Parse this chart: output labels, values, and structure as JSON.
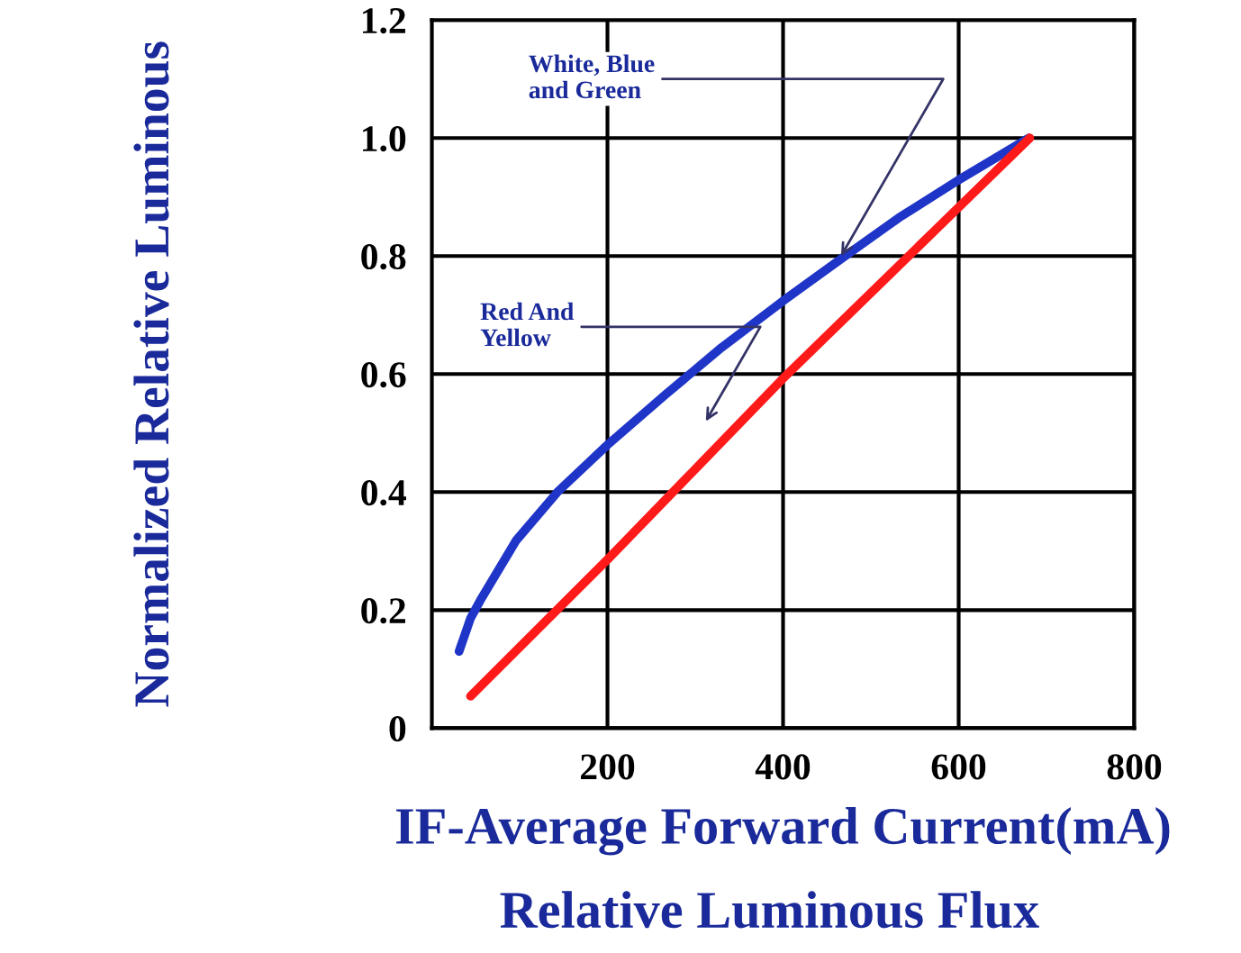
{
  "chart_data": {
    "type": "line",
    "ylabel": "Normalized Relative Luminous",
    "xlabel": "IF-Average Forward Current(mA)",
    "series": [
      {
        "color": "#1f35c8",
        "x": [
          31,
          44,
          55,
          96,
          143,
          200,
          266,
          330,
          400,
          466,
          532,
          600,
          680
        ],
        "values": [
          0.13,
          0.186,
          0.216,
          0.318,
          0.4,
          0.48,
          0.565,
          0.645,
          0.724,
          0.795,
          0.865,
          0.929,
          1.0
        ]
      },
      {
        "color": "#ff1a1a",
        "x": [
          44,
          201,
          403,
          681
        ],
        "values": [
          0.054,
          0.287,
          0.597,
          1.0
        ]
      }
    ],
    "xlim": [
      0,
      800
    ],
    "xticks": [
      200,
      400,
      600,
      800
    ],
    "ylim": [
      0,
      1.2
    ],
    "yticks": [
      0,
      {
        "value": 0.2,
        "label": "0.2"
      },
      {
        "value": 0.4,
        "label": "0.4"
      },
      {
        "value": 0.6,
        "label": "0.6"
      },
      {
        "value": 0.8,
        "label": "0.8"
      },
      {
        "value": 1.0,
        "label": "1.0"
      },
      {
        "value": 1.2,
        "label": "1.2"
      }
    ],
    "grid": true,
    "marker": "none",
    "line_style": "solid",
    "annotations": [
      {
        "text": "White, Blue\nand Green",
        "x": 466,
        "y": 0.8
      },
      "Red And\nYellow",
      "Relative Luminous Flux"
    ]
  }
}
